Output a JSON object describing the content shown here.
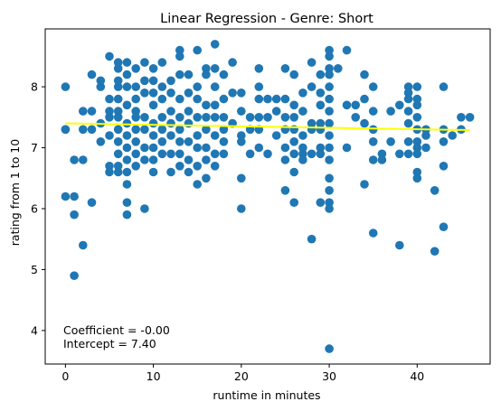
{
  "chart_data": {
    "type": "scatter",
    "title": "Linear Regression - Genre: Short",
    "xlabel": "runtime in minutes",
    "ylabel": "rating from 1 to 10",
    "xlim": [
      -2.3,
      48.3
    ],
    "ylim": [
      3.45,
      8.95
    ],
    "xticks": [
      0,
      10,
      20,
      30,
      40
    ],
    "yticks": [
      4,
      5,
      6,
      7,
      8
    ],
    "grid": false,
    "colors": {
      "points": "#1f77b4",
      "regression": "#ffff00"
    },
    "annotations": [
      "Coefficient = -0.00",
      "Intercept = 7.40"
    ],
    "regression": {
      "coefficient": -0.0024,
      "intercept": 7.4,
      "x_range": [
        0,
        46
      ]
    },
    "points": [
      [
        0,
        8.0
      ],
      [
        0,
        7.3
      ],
      [
        0,
        7.3
      ],
      [
        0,
        6.2
      ],
      [
        1,
        6.8
      ],
      [
        1,
        6.2
      ],
      [
        1,
        5.9
      ],
      [
        1,
        4.9
      ],
      [
        2,
        7.6
      ],
      [
        2,
        7.3
      ],
      [
        2,
        6.8
      ],
      [
        2,
        5.4
      ],
      [
        3,
        8.2
      ],
      [
        3,
        7.6
      ],
      [
        3,
        7.3
      ],
      [
        3,
        6.1
      ],
      [
        4,
        8.1
      ],
      [
        4,
        8.0
      ],
      [
        4,
        7.4
      ],
      [
        4,
        7.1
      ],
      [
        5,
        8.5
      ],
      [
        5,
        7.8
      ],
      [
        5,
        7.6
      ],
      [
        5,
        7.5
      ],
      [
        5,
        7.2
      ],
      [
        5,
        6.7
      ],
      [
        5,
        6.6
      ],
      [
        6,
        8.4
      ],
      [
        6,
        8.3
      ],
      [
        6,
        8.1
      ],
      [
        6,
        8.0
      ],
      [
        6,
        7.8
      ],
      [
        6,
        7.6
      ],
      [
        6,
        7.5
      ],
      [
        6,
        7.3
      ],
      [
        6,
        7.1
      ],
      [
        6,
        6.9
      ],
      [
        6,
        6.7
      ],
      [
        6,
        6.6
      ],
      [
        7,
        8.4
      ],
      [
        7,
        8.2
      ],
      [
        7,
        8.0
      ],
      [
        7,
        7.7
      ],
      [
        7,
        7.4
      ],
      [
        7,
        7.2
      ],
      [
        7,
        7.0
      ],
      [
        7,
        6.8
      ],
      [
        7,
        6.6
      ],
      [
        7,
        6.4
      ],
      [
        7,
        6.1
      ],
      [
        7,
        5.9
      ],
      [
        8,
        8.3
      ],
      [
        8,
        8.0
      ],
      [
        8,
        7.8
      ],
      [
        8,
        7.6
      ],
      [
        8,
        7.5
      ],
      [
        8,
        7.3
      ],
      [
        8,
        7.1
      ],
      [
        8,
        6.9
      ],
      [
        8,
        6.7
      ],
      [
        9,
        8.4
      ],
      [
        9,
        8.1
      ],
      [
        9,
        7.9
      ],
      [
        9,
        7.5
      ],
      [
        9,
        7.3
      ],
      [
        9,
        7.0
      ],
      [
        9,
        6.8
      ],
      [
        9,
        6.0
      ],
      [
        10,
        8.3
      ],
      [
        10,
        8.1
      ],
      [
        10,
        7.9
      ],
      [
        10,
        7.7
      ],
      [
        10,
        7.4
      ],
      [
        10,
        7.2
      ],
      [
        10,
        7.0
      ],
      [
        10,
        6.8
      ],
      [
        10,
        6.6
      ],
      [
        11,
        8.4
      ],
      [
        11,
        8.0
      ],
      [
        11,
        7.8
      ],
      [
        11,
        7.5
      ],
      [
        11,
        7.3
      ],
      [
        11,
        7.1
      ],
      [
        11,
        6.9
      ],
      [
        12,
        8.1
      ],
      [
        12,
        7.9
      ],
      [
        12,
        7.6
      ],
      [
        12,
        7.4
      ],
      [
        12,
        7.2
      ],
      [
        12,
        6.9
      ],
      [
        12,
        6.6
      ],
      [
        13,
        8.6
      ],
      [
        13,
        8.5
      ],
      [
        13,
        8.2
      ],
      [
        13,
        7.8
      ],
      [
        13,
        7.5
      ],
      [
        13,
        7.3
      ],
      [
        13,
        7.1
      ],
      [
        13,
        6.9
      ],
      [
        13,
        6.7
      ],
      [
        14,
        8.2
      ],
      [
        14,
        7.9
      ],
      [
        14,
        7.6
      ],
      [
        14,
        7.4
      ],
      [
        14,
        7.1
      ],
      [
        14,
        6.8
      ],
      [
        14,
        6.6
      ],
      [
        15,
        8.6
      ],
      [
        15,
        8.0
      ],
      [
        15,
        7.8
      ],
      [
        15,
        7.5
      ],
      [
        15,
        7.2
      ],
      [
        15,
        7.0
      ],
      [
        15,
        6.7
      ],
      [
        15,
        6.4
      ],
      [
        16,
        8.3
      ],
      [
        16,
        8.2
      ],
      [
        16,
        7.7
      ],
      [
        16,
        7.5
      ],
      [
        16,
        7.3
      ],
      [
        16,
        7.0
      ],
      [
        16,
        6.8
      ],
      [
        16,
        6.5
      ],
      [
        17,
        8.7
      ],
      [
        17,
        8.3
      ],
      [
        17,
        8.0
      ],
      [
        17,
        7.7
      ],
      [
        17,
        7.5
      ],
      [
        17,
        7.2
      ],
      [
        17,
        6.9
      ],
      [
        17,
        6.7
      ],
      [
        18,
        8.2
      ],
      [
        18,
        7.8
      ],
      [
        18,
        7.5
      ],
      [
        18,
        7.3
      ],
      [
        18,
        7.1
      ],
      [
        18,
        6.9
      ],
      [
        19,
        8.4
      ],
      [
        19,
        7.9
      ],
      [
        19,
        7.4
      ],
      [
        20,
        7.9
      ],
      [
        20,
        7.6
      ],
      [
        20,
        7.2
      ],
      [
        20,
        7.1
      ],
      [
        20,
        6.5
      ],
      [
        20,
        6.0
      ],
      [
        21,
        7.5
      ],
      [
        21,
        7.3
      ],
      [
        21,
        6.9
      ],
      [
        22,
        8.3
      ],
      [
        22,
        8.0
      ],
      [
        22,
        7.8
      ],
      [
        22,
        7.5
      ],
      [
        22,
        7.3
      ],
      [
        22,
        7.0
      ],
      [
        23,
        7.8
      ],
      [
        23,
        7.5
      ],
      [
        23,
        6.9
      ],
      [
        24,
        7.8
      ],
      [
        24,
        7.6
      ],
      [
        24,
        7.2
      ],
      [
        25,
        8.3
      ],
      [
        25,
        7.8
      ],
      [
        25,
        7.5
      ],
      [
        25,
        7.3
      ],
      [
        25,
        7.0
      ],
      [
        25,
        6.8
      ],
      [
        25,
        6.3
      ],
      [
        26,
        8.2
      ],
      [
        26,
        7.7
      ],
      [
        26,
        7.5
      ],
      [
        26,
        7.3
      ],
      [
        26,
        7.1
      ],
      [
        26,
        6.9
      ],
      [
        26,
        6.6
      ],
      [
        26,
        6.1
      ],
      [
        27,
        7.9
      ],
      [
        27,
        7.6
      ],
      [
        27,
        7.2
      ],
      [
        27,
        7.0
      ],
      [
        27,
        6.9
      ],
      [
        27,
        6.8
      ],
      [
        28,
        8.4
      ],
      [
        28,
        8.0
      ],
      [
        28,
        7.4
      ],
      [
        28,
        7.3
      ],
      [
        28,
        6.9
      ],
      [
        28,
        5.5
      ],
      [
        29,
        8.2
      ],
      [
        29,
        7.9
      ],
      [
        29,
        7.7
      ],
      [
        29,
        7.4
      ],
      [
        29,
        7.3
      ],
      [
        29,
        7.0
      ],
      [
        29,
        6.9
      ],
      [
        29,
        6.1
      ],
      [
        30,
        8.6
      ],
      [
        30,
        8.5
      ],
      [
        30,
        8.3
      ],
      [
        30,
        8.2
      ],
      [
        30,
        8.0
      ],
      [
        30,
        7.8
      ],
      [
        30,
        7.6
      ],
      [
        30,
        7.4
      ],
      [
        30,
        7.2
      ],
      [
        30,
        7.0
      ],
      [
        30,
        6.8
      ],
      [
        30,
        6.5
      ],
      [
        30,
        6.3
      ],
      [
        30,
        6.1
      ],
      [
        30,
        6.0
      ],
      [
        30,
        3.7
      ],
      [
        31,
        8.3
      ],
      [
        32,
        8.6
      ],
      [
        32,
        7.7
      ],
      [
        32,
        7.0
      ],
      [
        33,
        7.7
      ],
      [
        33,
        7.5
      ],
      [
        34,
        8.2
      ],
      [
        34,
        7.8
      ],
      [
        34,
        7.4
      ],
      [
        34,
        6.4
      ],
      [
        35,
        8.0
      ],
      [
        35,
        7.6
      ],
      [
        35,
        7.3
      ],
      [
        35,
        7.1
      ],
      [
        35,
        6.8
      ],
      [
        35,
        5.6
      ],
      [
        36,
        6.9
      ],
      [
        36,
        6.8
      ],
      [
        37,
        7.1
      ],
      [
        37,
        7.6
      ],
      [
        38,
        7.7
      ],
      [
        38,
        6.9
      ],
      [
        38,
        5.4
      ],
      [
        39,
        8.0
      ],
      [
        39,
        7.9
      ],
      [
        39,
        7.8
      ],
      [
        39,
        7.6
      ],
      [
        39,
        7.4
      ],
      [
        39,
        7.1
      ],
      [
        39,
        6.9
      ],
      [
        40,
        8.0
      ],
      [
        40,
        7.8
      ],
      [
        40,
        7.5
      ],
      [
        40,
        7.3
      ],
      [
        40,
        7.1
      ],
      [
        40,
        7.0
      ],
      [
        40,
        6.9
      ],
      [
        40,
        6.6
      ],
      [
        40,
        6.5
      ],
      [
        40,
        7.7
      ],
      [
        41,
        7.3
      ],
      [
        41,
        7.2
      ],
      [
        41,
        7.0
      ],
      [
        42,
        6.3
      ],
      [
        42,
        5.3
      ],
      [
        43,
        8.0
      ],
      [
        43,
        7.3
      ],
      [
        43,
        7.1
      ],
      [
        43,
        6.7
      ],
      [
        43,
        5.7
      ],
      [
        44,
        7.2
      ],
      [
        45,
        7.5
      ],
      [
        45,
        7.3
      ],
      [
        46,
        7.5
      ]
    ]
  }
}
